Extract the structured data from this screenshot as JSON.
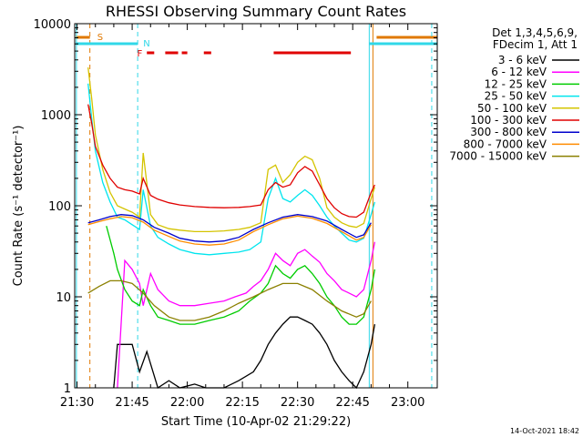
{
  "chart_data": {
    "type": "line",
    "title": "RHESSI Observing Summary Count Rates",
    "xlabel": "Start Time (10-Apr-02 21:29:22)",
    "ylabel": "Count Rate (s⁻¹ detector⁻¹)",
    "yscale": "log",
    "ylim": [
      1,
      10000
    ],
    "xlim": [
      "21:29:22",
      "23:08:00"
    ],
    "grid": false,
    "legend_position": "right",
    "legend_header": [
      "Det 1,3,4,5,6,9,",
      "FDecim 1, Att 1"
    ],
    "footer_date": "14-Oct-2021 18:42",
    "x_ticks": [
      "21:30",
      "21:45",
      "22:00",
      "22:15",
      "22:30",
      "22:45",
      "23:00"
    ],
    "y_ticks": [
      "1",
      "10",
      "100",
      "1000",
      "10000"
    ],
    "flags": [
      {
        "label": "S",
        "color": "#e07800"
      },
      {
        "label": "N",
        "color": "#30d8e8"
      },
      {
        "label": "F",
        "color": "#e00000"
      }
    ],
    "series": [
      {
        "name": "3 - 6 keV",
        "color": "#000000",
        "points": [
          [
            "21:40",
            1
          ],
          [
            "21:41",
            3
          ],
          [
            "21:43",
            3
          ],
          [
            "21:45",
            3
          ],
          [
            "21:47",
            1.5
          ],
          [
            "21:49",
            2.5
          ],
          [
            "21:52",
            1
          ],
          [
            "21:55",
            1.2
          ],
          [
            "21:58",
            1
          ],
          [
            "22:02",
            1.1
          ],
          [
            "22:05",
            1
          ],
          [
            "22:10",
            1
          ],
          [
            "22:14",
            1.2
          ],
          [
            "22:18",
            1.5
          ],
          [
            "22:20",
            2
          ],
          [
            "22:22",
            3
          ],
          [
            "22:24",
            4
          ],
          [
            "22:26",
            5
          ],
          [
            "22:28",
            6
          ],
          [
            "22:30",
            6
          ],
          [
            "22:32",
            5.5
          ],
          [
            "22:34",
            5
          ],
          [
            "22:36",
            4
          ],
          [
            "22:38",
            3
          ],
          [
            "22:40",
            2
          ],
          [
            "22:42",
            1.5
          ],
          [
            "22:44",
            1.2
          ],
          [
            "22:46",
            1
          ],
          [
            "22:48",
            1.5
          ],
          [
            "22:50",
            3
          ],
          [
            "22:51",
            5
          ]
        ]
      },
      {
        "name": "6 - 12 keV",
        "color": "#ff00ff",
        "points": [
          [
            "21:41",
            1
          ],
          [
            "21:43",
            25
          ],
          [
            "21:45",
            20
          ],
          [
            "21:47",
            14
          ],
          [
            "21:48",
            8
          ],
          [
            "21:50",
            18
          ],
          [
            "21:52",
            12
          ],
          [
            "21:55",
            9
          ],
          [
            "21:58",
            8
          ],
          [
            "22:02",
            8
          ],
          [
            "22:06",
            8.5
          ],
          [
            "22:10",
            9
          ],
          [
            "22:13",
            10
          ],
          [
            "22:16",
            11
          ],
          [
            "22:18",
            13
          ],
          [
            "22:20",
            15
          ],
          [
            "22:22",
            20
          ],
          [
            "22:24",
            30
          ],
          [
            "22:26",
            25
          ],
          [
            "22:28",
            22
          ],
          [
            "22:30",
            30
          ],
          [
            "22:32",
            33
          ],
          [
            "22:34",
            28
          ],
          [
            "22:36",
            24
          ],
          [
            "22:38",
            18
          ],
          [
            "22:40",
            15
          ],
          [
            "22:42",
            12
          ],
          [
            "22:44",
            11
          ],
          [
            "22:46",
            10
          ],
          [
            "22:48",
            12
          ],
          [
            "22:50",
            25
          ],
          [
            "22:51",
            40
          ]
        ]
      },
      {
        "name": "12 - 25 keV",
        "color": "#00cc00",
        "points": [
          [
            "21:38",
            60
          ],
          [
            "21:40",
            30
          ],
          [
            "21:41",
            20
          ],
          [
            "21:43",
            12
          ],
          [
            "21:45",
            9
          ],
          [
            "21:47",
            8
          ],
          [
            "21:48",
            12
          ],
          [
            "21:50",
            8
          ],
          [
            "21:52",
            6
          ],
          [
            "21:55",
            5.5
          ],
          [
            "21:58",
            5
          ],
          [
            "22:02",
            5
          ],
          [
            "22:06",
            5.5
          ],
          [
            "22:10",
            6
          ],
          [
            "22:14",
            7
          ],
          [
            "22:17",
            9
          ],
          [
            "22:20",
            11
          ],
          [
            "22:22",
            14
          ],
          [
            "22:24",
            22
          ],
          [
            "22:26",
            18
          ],
          [
            "22:28",
            16
          ],
          [
            "22:30",
            20
          ],
          [
            "22:32",
            22
          ],
          [
            "22:34",
            18
          ],
          [
            "22:36",
            14
          ],
          [
            "22:38",
            10
          ],
          [
            "22:40",
            8
          ],
          [
            "22:42",
            6
          ],
          [
            "22:44",
            5
          ],
          [
            "22:46",
            5
          ],
          [
            "22:48",
            6
          ],
          [
            "22:50",
            12
          ],
          [
            "22:51",
            20
          ]
        ]
      },
      {
        "name": "25 - 50 keV",
        "color": "#00e5ee",
        "points": [
          [
            "21:33",
            2200
          ],
          [
            "21:34",
            900
          ],
          [
            "21:35",
            400
          ],
          [
            "21:37",
            180
          ],
          [
            "21:39",
            110
          ],
          [
            "21:41",
            75
          ],
          [
            "21:43",
            70
          ],
          [
            "21:45",
            62
          ],
          [
            "21:47",
            55
          ],
          [
            "21:48",
            150
          ],
          [
            "21:50",
            60
          ],
          [
            "21:52",
            45
          ],
          [
            "21:55",
            38
          ],
          [
            "21:58",
            33
          ],
          [
            "22:02",
            30
          ],
          [
            "22:06",
            29
          ],
          [
            "22:10",
            30
          ],
          [
            "22:14",
            31
          ],
          [
            "22:17",
            33
          ],
          [
            "22:20",
            40
          ],
          [
            "22:22",
            120
          ],
          [
            "22:24",
            200
          ],
          [
            "22:26",
            120
          ],
          [
            "22:28",
            110
          ],
          [
            "22:30",
            130
          ],
          [
            "22:32",
            150
          ],
          [
            "22:34",
            130
          ],
          [
            "22:36",
            100
          ],
          [
            "22:38",
            75
          ],
          [
            "22:40",
            60
          ],
          [
            "22:42",
            50
          ],
          [
            "22:44",
            42
          ],
          [
            "22:46",
            40
          ],
          [
            "22:48",
            44
          ],
          [
            "22:50",
            80
          ],
          [
            "22:51",
            110
          ]
        ]
      },
      {
        "name": "50 - 100 keV",
        "color": "#d4c400",
        "points": [
          [
            "21:33",
            3300
          ],
          [
            "21:34",
            1500
          ],
          [
            "21:35",
            600
          ],
          [
            "21:37",
            250
          ],
          [
            "21:39",
            140
          ],
          [
            "21:41",
            100
          ],
          [
            "21:43",
            92
          ],
          [
            "21:45",
            85
          ],
          [
            "21:47",
            75
          ],
          [
            "21:48",
            380
          ],
          [
            "21:50",
            80
          ],
          [
            "21:52",
            62
          ],
          [
            "21:55",
            56
          ],
          [
            "21:58",
            54
          ],
          [
            "22:02",
            52
          ],
          [
            "22:06",
            52
          ],
          [
            "22:10",
            53
          ],
          [
            "22:14",
            55
          ],
          [
            "22:17",
            58
          ],
          [
            "22:20",
            65
          ],
          [
            "22:22",
            250
          ],
          [
            "22:24",
            280
          ],
          [
            "22:26",
            180
          ],
          [
            "22:28",
            220
          ],
          [
            "22:30",
            300
          ],
          [
            "22:32",
            350
          ],
          [
            "22:34",
            320
          ],
          [
            "22:36",
            200
          ],
          [
            "22:38",
            95
          ],
          [
            "22:40",
            75
          ],
          [
            "22:42",
            65
          ],
          [
            "22:44",
            60
          ],
          [
            "22:46",
            58
          ],
          [
            "22:48",
            64
          ],
          [
            "22:50",
            120
          ],
          [
            "22:51",
            160
          ]
        ]
      },
      {
        "name": "100 - 300 keV",
        "color": "#e00000",
        "points": [
          [
            "21:33",
            1300
          ],
          [
            "21:34",
            800
          ],
          [
            "21:35",
            450
          ],
          [
            "21:37",
            280
          ],
          [
            "21:39",
            200
          ],
          [
            "21:41",
            160
          ],
          [
            "21:43",
            150
          ],
          [
            "21:45",
            145
          ],
          [
            "21:47",
            135
          ],
          [
            "21:48",
            200
          ],
          [
            "21:50",
            130
          ],
          [
            "21:52",
            118
          ],
          [
            "21:55",
            108
          ],
          [
            "21:58",
            102
          ],
          [
            "22:02",
            98
          ],
          [
            "22:06",
            96
          ],
          [
            "22:10",
            95
          ],
          [
            "22:14",
            96
          ],
          [
            "22:17",
            98
          ],
          [
            "22:20",
            102
          ],
          [
            "22:22",
            150
          ],
          [
            "22:24",
            180
          ],
          [
            "22:26",
            160
          ],
          [
            "22:28",
            170
          ],
          [
            "22:30",
            230
          ],
          [
            "22:32",
            270
          ],
          [
            "22:34",
            240
          ],
          [
            "22:36",
            170
          ],
          [
            "22:38",
            120
          ],
          [
            "22:40",
            95
          ],
          [
            "22:42",
            82
          ],
          [
            "22:44",
            76
          ],
          [
            "22:46",
            75
          ],
          [
            "22:48",
            85
          ],
          [
            "22:50",
            140
          ],
          [
            "22:51",
            170
          ]
        ]
      },
      {
        "name": "300 - 800 keV",
        "color": "#0000cc",
        "points": [
          [
            "21:33",
            65
          ],
          [
            "21:36",
            70
          ],
          [
            "21:39",
            76
          ],
          [
            "21:42",
            80
          ],
          [
            "21:45",
            78
          ],
          [
            "21:48",
            70
          ],
          [
            "21:51",
            58
          ],
          [
            "21:55",
            50
          ],
          [
            "21:58",
            44
          ],
          [
            "22:02",
            41
          ],
          [
            "22:06",
            40
          ],
          [
            "22:10",
            41
          ],
          [
            "22:14",
            45
          ],
          [
            "22:18",
            55
          ],
          [
            "22:22",
            65
          ],
          [
            "22:26",
            75
          ],
          [
            "22:30",
            80
          ],
          [
            "22:34",
            76
          ],
          [
            "22:38",
            68
          ],
          [
            "22:42",
            55
          ],
          [
            "22:46",
            45
          ],
          [
            "22:48",
            48
          ],
          [
            "22:50",
            65
          ]
        ]
      },
      {
        "name": "800 - 7000 keV",
        "color": "#ff8c00",
        "points": [
          [
            "21:33",
            62
          ],
          [
            "21:36",
            67
          ],
          [
            "21:39",
            72
          ],
          [
            "21:42",
            76
          ],
          [
            "21:45",
            74
          ],
          [
            "21:48",
            66
          ],
          [
            "21:51",
            54
          ],
          [
            "21:55",
            46
          ],
          [
            "21:58",
            41
          ],
          [
            "22:02",
            38
          ],
          [
            "22:06",
            37
          ],
          [
            "22:10",
            38
          ],
          [
            "22:14",
            42
          ],
          [
            "22:18",
            52
          ],
          [
            "22:22",
            62
          ],
          [
            "22:26",
            72
          ],
          [
            "22:30",
            77
          ],
          [
            "22:34",
            73
          ],
          [
            "22:38",
            64
          ],
          [
            "22:42",
            52
          ],
          [
            "22:46",
            42
          ],
          [
            "22:48",
            45
          ],
          [
            "22:50",
            62
          ]
        ]
      },
      {
        "name": "7000 - 15000 keV",
        "color": "#8b8000",
        "points": [
          [
            "21:33",
            11
          ],
          [
            "21:36",
            13
          ],
          [
            "21:39",
            15
          ],
          [
            "21:42",
            15
          ],
          [
            "21:45",
            14
          ],
          [
            "21:48",
            11
          ],
          [
            "21:51",
            8
          ],
          [
            "21:55",
            6
          ],
          [
            "21:58",
            5.5
          ],
          [
            "22:02",
            5.5
          ],
          [
            "22:06",
            6
          ],
          [
            "22:10",
            7
          ],
          [
            "22:14",
            8.5
          ],
          [
            "22:18",
            10
          ],
          [
            "22:22",
            12
          ],
          [
            "22:26",
            14
          ],
          [
            "22:30",
            14
          ],
          [
            "22:34",
            12
          ],
          [
            "22:38",
            9
          ],
          [
            "22:42",
            7
          ],
          [
            "22:46",
            6
          ],
          [
            "22:48",
            6.5
          ],
          [
            "22:50",
            9
          ]
        ]
      }
    ]
  }
}
